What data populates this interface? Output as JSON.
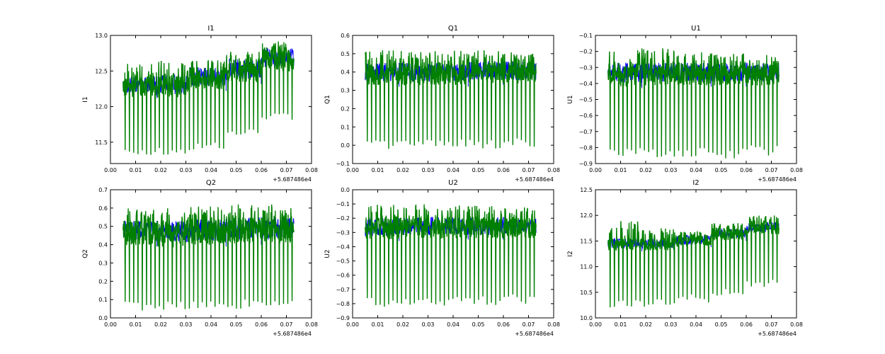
{
  "figure": {
    "background": "#ffffff",
    "series_colors": {
      "blue": "#0000ff",
      "green": "#008000"
    },
    "x_offset_label": "+5.687486e4"
  },
  "chart_data": [
    {
      "type": "line",
      "title": "I1",
      "xlabel": "",
      "ylabel": "I1",
      "xlim": [
        0.0,
        0.08
      ],
      "ylim": [
        11.2,
        13.0
      ],
      "xticks": [
        "0.00",
        "0.01",
        "0.02",
        "0.03",
        "0.04",
        "0.05",
        "0.06",
        "0.07",
        "0.08"
      ],
      "yticks": [
        11.5,
        12.0,
        12.5,
        13.0
      ],
      "ytick_labels": [
        "11.5",
        "12.0",
        "12.5",
        "13.0"
      ],
      "x_offset_label": "+5.687486e4",
      "x_range": [
        0.005,
        0.073
      ],
      "segment_breaks": [
        0.0185,
        0.0315,
        0.046,
        0.06
      ],
      "segments": [
        {
          "x": [
            0.005,
            0.0185
          ],
          "blue_base": 12.12,
          "blue_top": 12.42,
          "green_top": 12.6,
          "green_dip": 11.3
        },
        {
          "x": [
            0.0185,
            0.0315
          ],
          "blue_base": 12.1,
          "blue_top": 12.45,
          "green_top": 12.65,
          "green_dip": 11.3
        },
        {
          "x": [
            0.0315,
            0.046
          ],
          "blue_base": 12.22,
          "blue_top": 12.55,
          "green_top": 12.65,
          "green_dip": 11.4
        },
        {
          "x": [
            0.046,
            0.06
          ],
          "blue_base": 12.32,
          "blue_top": 12.68,
          "green_top": 12.8,
          "green_dip": 11.6
        },
        {
          "x": [
            0.06,
            0.073
          ],
          "blue_base": 12.48,
          "blue_top": 12.82,
          "green_top": 12.92,
          "green_dip": 11.8
        }
      ]
    },
    {
      "type": "line",
      "title": "Q1",
      "xlabel": "",
      "ylabel": "Q1",
      "xlim": [
        0.0,
        0.08
      ],
      "ylim": [
        -0.1,
        0.6
      ],
      "xticks": [
        "0.00",
        "0.01",
        "0.02",
        "0.03",
        "0.04",
        "0.05",
        "0.06",
        "0.07",
        "0.08"
      ],
      "yticks": [
        -0.1,
        0.0,
        0.1,
        0.2,
        0.3,
        0.4,
        0.5,
        0.6
      ],
      "ytick_labels": [
        "−0.1",
        "0.0",
        "0.1",
        "0.2",
        "0.3",
        "0.4",
        "0.5",
        "0.6"
      ],
      "x_offset_label": "+5.687486e4",
      "x_range": [
        0.005,
        0.073
      ],
      "segment_breaks": [
        0.0185,
        0.0315,
        0.046,
        0.06
      ],
      "segments": [
        {
          "x": [
            0.005,
            0.0185
          ],
          "blue_base": 0.32,
          "blue_top": 0.45,
          "green_top": 0.52,
          "green_dip": -0.02
        },
        {
          "x": [
            0.0185,
            0.0315
          ],
          "blue_base": 0.32,
          "blue_top": 0.45,
          "green_top": 0.52,
          "green_dip": -0.02
        },
        {
          "x": [
            0.0315,
            0.046
          ],
          "blue_base": 0.32,
          "blue_top": 0.45,
          "green_top": 0.52,
          "green_dip": -0.02
        },
        {
          "x": [
            0.046,
            0.06
          ],
          "blue_base": 0.33,
          "blue_top": 0.46,
          "green_top": 0.52,
          "green_dip": -0.02
        },
        {
          "x": [
            0.06,
            0.073
          ],
          "blue_base": 0.33,
          "blue_top": 0.46,
          "green_top": 0.51,
          "green_dip": -0.01
        }
      ]
    },
    {
      "type": "line",
      "title": "U1",
      "xlabel": "",
      "ylabel": "U1",
      "xlim": [
        0.0,
        0.08
      ],
      "ylim": [
        -0.9,
        -0.1
      ],
      "xticks": [
        "0.00",
        "0.01",
        "0.02",
        "0.03",
        "0.04",
        "0.05",
        "0.06",
        "0.07",
        "0.08"
      ],
      "yticks": [
        -0.9,
        -0.8,
        -0.7,
        -0.6,
        -0.5,
        -0.4,
        -0.3,
        -0.2,
        -0.1
      ],
      "ytick_labels": [
        "−0.9",
        "−0.8",
        "−0.7",
        "−0.6",
        "−0.5",
        "−0.4",
        "−0.3",
        "−0.2",
        "−0.1"
      ],
      "x_offset_label": "+5.687486e4",
      "x_range": [
        0.005,
        0.073
      ],
      "segment_breaks": [
        0.0185,
        0.0315,
        0.046,
        0.06
      ],
      "segments": [
        {
          "x": [
            0.005,
            0.0185
          ],
          "blue_base": -0.43,
          "blue_top": -0.27,
          "green_top": -0.18,
          "green_dip": -0.87
        },
        {
          "x": [
            0.0185,
            0.0315
          ],
          "blue_base": -0.42,
          "blue_top": -0.27,
          "green_top": -0.18,
          "green_dip": -0.86
        },
        {
          "x": [
            0.0315,
            0.046
          ],
          "blue_base": -0.42,
          "blue_top": -0.27,
          "green_top": -0.2,
          "green_dip": -0.86
        },
        {
          "x": [
            0.046,
            0.06
          ],
          "blue_base": -0.42,
          "blue_top": -0.27,
          "green_top": -0.2,
          "green_dip": -0.87
        },
        {
          "x": [
            0.06,
            0.073
          ],
          "blue_base": -0.42,
          "blue_top": -0.27,
          "green_top": -0.2,
          "green_dip": -0.85
        }
      ]
    },
    {
      "type": "line",
      "title": "Q2",
      "xlabel": "",
      "ylabel": "Q2",
      "xlim": [
        0.0,
        0.08
      ],
      "ylim": [
        0.0,
        0.7
      ],
      "xticks": [
        "0.00",
        "0.01",
        "0.02",
        "0.03",
        "0.04",
        "0.05",
        "0.06",
        "0.07",
        "0.08"
      ],
      "yticks": [
        0.0,
        0.1,
        0.2,
        0.3,
        0.4,
        0.5,
        0.6,
        0.7
      ],
      "ytick_labels": [
        "0.0",
        "0.1",
        "0.2",
        "0.3",
        "0.4",
        "0.5",
        "0.6",
        "0.7"
      ],
      "x_offset_label": "+5.687486e4",
      "x_range": [
        0.005,
        0.073
      ],
      "segment_breaks": [
        0.0185,
        0.0315,
        0.046,
        0.06
      ],
      "segments": [
        {
          "x": [
            0.005,
            0.0185
          ],
          "blue_base": 0.39,
          "blue_top": 0.53,
          "green_top": 0.6,
          "green_dip": 0.04
        },
        {
          "x": [
            0.0185,
            0.0315
          ],
          "blue_base": 0.38,
          "blue_top": 0.53,
          "green_top": 0.6,
          "green_dip": 0.04
        },
        {
          "x": [
            0.0315,
            0.046
          ],
          "blue_base": 0.39,
          "blue_top": 0.54,
          "green_top": 0.61,
          "green_dip": 0.04
        },
        {
          "x": [
            0.046,
            0.06
          ],
          "blue_base": 0.4,
          "blue_top": 0.55,
          "green_top": 0.62,
          "green_dip": 0.05
        },
        {
          "x": [
            0.06,
            0.073
          ],
          "blue_base": 0.4,
          "blue_top": 0.55,
          "green_top": 0.62,
          "green_dip": 0.05
        }
      ]
    },
    {
      "type": "line",
      "title": "U2",
      "xlabel": "",
      "ylabel": "U2",
      "xlim": [
        0.0,
        0.08
      ],
      "ylim": [
        -0.9,
        0.0
      ],
      "xticks": [
        "0.00",
        "0.01",
        "0.02",
        "0.03",
        "0.04",
        "0.05",
        "0.06",
        "0.07",
        "0.08"
      ],
      "yticks": [
        -0.9,
        -0.8,
        -0.7,
        -0.6,
        -0.5,
        -0.4,
        -0.3,
        -0.2,
        -0.1,
        0.0
      ],
      "ytick_labels": [
        "−0.9",
        "−0.8",
        "−0.7",
        "−0.6",
        "−0.5",
        "−0.4",
        "−0.3",
        "−0.2",
        "−0.1",
        "0.0"
      ],
      "x_offset_label": "+5.687486e4",
      "x_range": [
        0.005,
        0.073
      ],
      "segment_breaks": [
        0.0185,
        0.0315,
        0.046,
        0.06
      ],
      "segments": [
        {
          "x": [
            0.005,
            0.0185
          ],
          "blue_base": -0.36,
          "blue_top": -0.2,
          "green_top": -0.1,
          "green_dip": -0.83
        },
        {
          "x": [
            0.0185,
            0.0315
          ],
          "blue_base": -0.35,
          "blue_top": -0.19,
          "green_top": -0.1,
          "green_dip": -0.82
        },
        {
          "x": [
            0.0315,
            0.046
          ],
          "blue_base": -0.35,
          "blue_top": -0.19,
          "green_top": -0.11,
          "green_dip": -0.82
        },
        {
          "x": [
            0.046,
            0.06
          ],
          "blue_base": -0.35,
          "blue_top": -0.19,
          "green_top": -0.11,
          "green_dip": -0.82
        },
        {
          "x": [
            0.06,
            0.073
          ],
          "blue_base": -0.35,
          "blue_top": -0.19,
          "green_top": -0.12,
          "green_dip": -0.8
        }
      ]
    },
    {
      "type": "line",
      "title": "I2",
      "xlabel": "",
      "ylabel": "I2",
      "xlim": [
        0.0,
        0.08
      ],
      "ylim": [
        10.0,
        12.5
      ],
      "xticks": [
        "0.00",
        "0.01",
        "0.02",
        "0.03",
        "0.04",
        "0.05",
        "0.06",
        "0.07",
        "0.08"
      ],
      "yticks": [
        10.0,
        10.5,
        11.0,
        11.5,
        12.0,
        12.5
      ],
      "ytick_labels": [
        "10.0",
        "10.5",
        "11.0",
        "11.5",
        "12.0",
        "12.5"
      ],
      "x_offset_label": "+5.687486e4",
      "x_range": [
        0.005,
        0.073
      ],
      "segment_breaks": [
        0.0185,
        0.0315,
        0.046,
        0.06
      ],
      "segments": [
        {
          "x": [
            0.005,
            0.0185
          ],
          "blue_base": 11.3,
          "blue_top": 11.55,
          "green_top": 11.9,
          "green_dip": 10.2
        },
        {
          "x": [
            0.0185,
            0.0315
          ],
          "blue_base": 11.3,
          "blue_top": 11.55,
          "green_top": 11.75,
          "green_dip": 10.2
        },
        {
          "x": [
            0.0315,
            0.046
          ],
          "blue_base": 11.38,
          "blue_top": 11.62,
          "green_top": 11.7,
          "green_dip": 10.3
        },
        {
          "x": [
            0.046,
            0.06
          ],
          "blue_base": 11.5,
          "blue_top": 11.75,
          "green_top": 11.85,
          "green_dip": 10.4
        },
        {
          "x": [
            0.06,
            0.073
          ],
          "blue_base": 11.62,
          "blue_top": 11.88,
          "green_top": 12.0,
          "green_dip": 10.6
        }
      ]
    }
  ]
}
